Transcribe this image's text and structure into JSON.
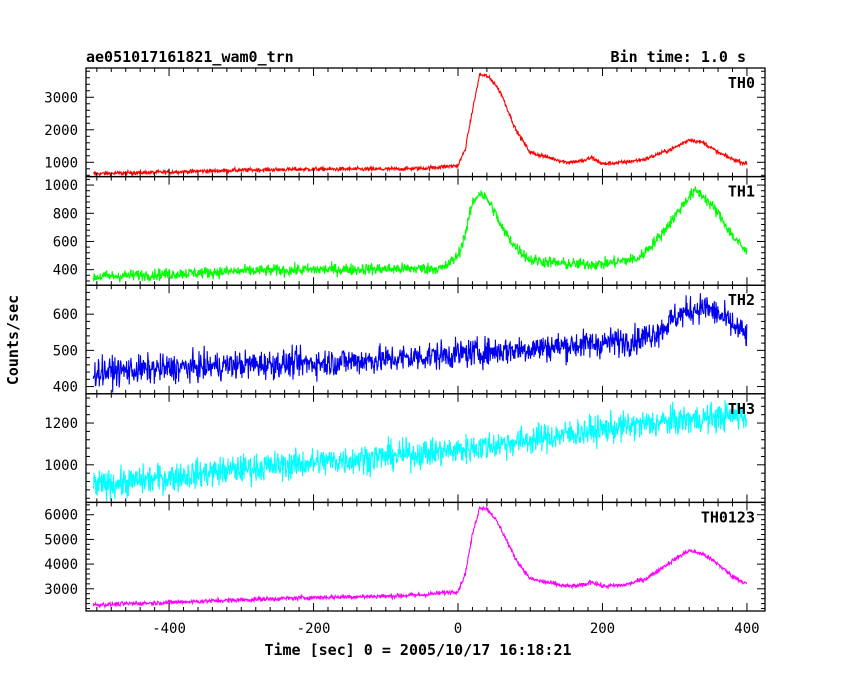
{
  "chart_data": {
    "type": "line",
    "title": "ae051017161821_wam0_trn",
    "subtitle": "Bin time: 1.0 s",
    "xlabel": "Time [sec] 0 = 2005/10/17 16:18:21",
    "ylabel": "Counts/sec",
    "xlim": [
      -515,
      425
    ],
    "xticks": [
      -400,
      -200,
      0,
      200,
      400
    ],
    "grid": false,
    "panels": [
      {
        "name": "TH0",
        "color": "#ff0000",
        "ylim": [
          560,
          3900
        ],
        "yticks": [
          1000,
          2000,
          3000
        ],
        "noise": 45,
        "x": [
          -500,
          -400,
          -300,
          -200,
          -100,
          -50,
          0,
          10,
          20,
          30,
          40,
          50,
          60,
          80,
          100,
          150,
          175,
          185,
          200,
          230,
          260,
          300,
          320,
          340,
          360,
          380,
          400
        ],
        "y": [
          650,
          700,
          760,
          790,
          790,
          810,
          900,
          1400,
          2600,
          3700,
          3650,
          3450,
          3100,
          2000,
          1300,
          1000,
          1050,
          1150,
          950,
          1000,
          1100,
          1450,
          1700,
          1600,
          1300,
          1100,
          950
        ]
      },
      {
        "name": "TH1",
        "color": "#00ff00",
        "ylim": [
          290,
          1060
        ],
        "yticks": [
          400,
          600,
          800,
          1000
        ],
        "noise": 30,
        "x": [
          -500,
          -400,
          -300,
          -200,
          -100,
          -20,
          0,
          10,
          20,
          30,
          40,
          50,
          60,
          80,
          100,
          150,
          200,
          250,
          280,
          300,
          320,
          330,
          340,
          360,
          380,
          400
        ],
        "y": [
          350,
          370,
          390,
          400,
          405,
          410,
          500,
          650,
          870,
          950,
          900,
          820,
          700,
          560,
          470,
          440,
          440,
          480,
          640,
          780,
          920,
          960,
          920,
          800,
          640,
          520
        ]
      },
      {
        "name": "TH2",
        "color": "#0000ee",
        "ylim": [
          380,
          680
        ],
        "yticks": [
          400,
          500,
          600
        ],
        "noise": 28,
        "x": [
          -500,
          -400,
          -300,
          -200,
          -100,
          0,
          100,
          200,
          250,
          280,
          300,
          320,
          340,
          360,
          380,
          400
        ],
        "y": [
          440,
          450,
          460,
          465,
          475,
          490,
          505,
          520,
          530,
          555,
          590,
          610,
          620,
          600,
          570,
          540
        ]
      },
      {
        "name": "TH3",
        "color": "#00ffff",
        "ylim": [
          820,
          1340
        ],
        "yticks": [
          1000,
          1200
        ],
        "noise": 50,
        "x": [
          -500,
          -400,
          -300,
          -200,
          -100,
          0,
          100,
          200,
          300,
          400
        ],
        "y": [
          900,
          940,
          980,
          1010,
          1040,
          1070,
          1120,
          1170,
          1210,
          1240
        ]
      },
      {
        "name": "TH0123",
        "color": "#ff00ff",
        "ylim": [
          2100,
          6500
        ],
        "yticks": [
          3000,
          4000,
          5000,
          6000
        ],
        "noise": 65,
        "x": [
          -500,
          -400,
          -300,
          -200,
          -100,
          -50,
          0,
          10,
          20,
          30,
          40,
          50,
          60,
          80,
          100,
          150,
          175,
          185,
          200,
          230,
          260,
          300,
          320,
          340,
          360,
          380,
          400
        ],
        "y": [
          2350,
          2450,
          2550,
          2650,
          2700,
          2750,
          2900,
          3600,
          5200,
          6300,
          6250,
          5900,
          5400,
          4200,
          3400,
          3100,
          3150,
          3300,
          3100,
          3150,
          3400,
          4200,
          4550,
          4400,
          4000,
          3500,
          3200
        ]
      }
    ]
  }
}
